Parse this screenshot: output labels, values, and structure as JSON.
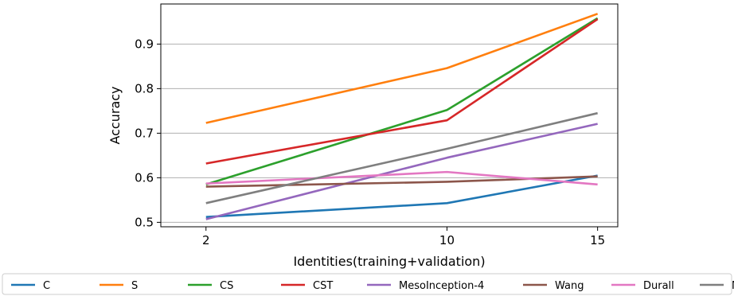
{
  "chart_data": {
    "type": "line",
    "x": [
      2,
      10,
      15
    ],
    "xticks": [
      "2",
      "10",
      "15"
    ],
    "xlabel": "Identities(training+validation)",
    "ylabel": "Accuracy",
    "yticks": [
      "0.5",
      "0.6",
      "0.7",
      "0.8",
      "0.9"
    ],
    "ylim": [
      0.49,
      0.99
    ],
    "grid": "horizontal",
    "legend_position": "bottom",
    "series": [
      {
        "name": "C",
        "color": "#1f77b4",
        "values": [
          0.512,
          0.543,
          0.605
        ]
      },
      {
        "name": "S",
        "color": "#ff7f0e",
        "values": [
          0.723,
          0.846,
          0.968
        ]
      },
      {
        "name": "CS",
        "color": "#2ca02c",
        "values": [
          0.585,
          0.752,
          0.958
        ]
      },
      {
        "name": "CST",
        "color": "#d62728",
        "values": [
          0.632,
          0.729,
          0.956
        ]
      },
      {
        "name": "MesoInception-4",
        "color": "#9467bd",
        "values": [
          0.507,
          0.645,
          0.721
        ]
      },
      {
        "name": "Wang",
        "color": "#8c564b",
        "values": [
          0.58,
          0.591,
          0.603
        ]
      },
      {
        "name": "Durall",
        "color": "#e377c2",
        "values": [
          0.587,
          0.613,
          0.585
        ]
      },
      {
        "name": "MISL",
        "color": "#7f7f7f",
        "values": [
          0.543,
          0.665,
          0.745
        ]
      }
    ]
  }
}
